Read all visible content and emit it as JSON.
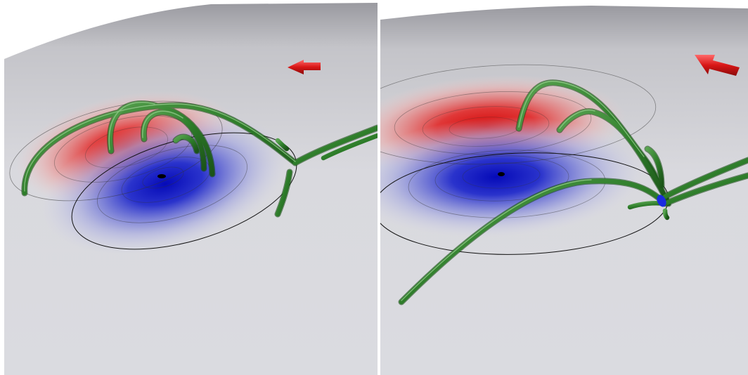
{
  "figure": {
    "panels": [
      {
        "id": "left",
        "arrow_color": "#d81616",
        "positive_pole_color": "#d91111",
        "negative_pole_color": "#0a0fc4",
        "field_line_color": "#2e7d2a",
        "surface_color": "#dcdde2",
        "null_point_marker": false
      },
      {
        "id": "right",
        "arrow_color": "#d81616",
        "positive_pole_color": "#d91111",
        "negative_pole_color": "#0a0fc4",
        "field_line_color": "#2e7d2a",
        "surface_color": "#dcdde2",
        "null_point_marker": true,
        "null_point_color": "#1a2be0"
      }
    ]
  }
}
